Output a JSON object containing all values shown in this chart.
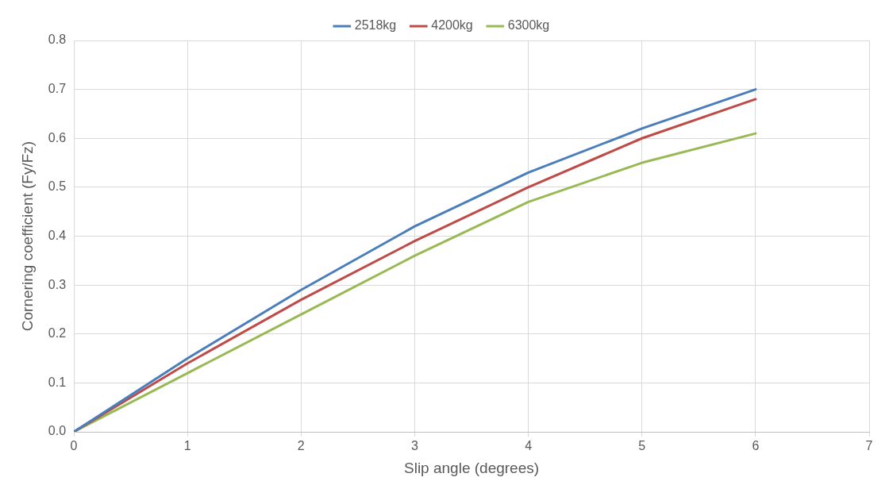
{
  "chart_data": {
    "type": "line",
    "xlabel": "Slip angle (degrees)",
    "ylabel": "Cornering coefficient (Fy/Fz)",
    "x": [
      0,
      1,
      2,
      3,
      4,
      5,
      6
    ],
    "series": [
      {
        "name": "2518kg",
        "color": "#4a7ebb",
        "values": [
          0,
          0.15,
          0.29,
          0.42,
          0.53,
          0.62,
          0.7
        ]
      },
      {
        "name": "4200kg",
        "color": "#be4b48",
        "values": [
          0,
          0.14,
          0.27,
          0.39,
          0.5,
          0.6,
          0.68
        ]
      },
      {
        "name": "6300kg",
        "color": "#98b954",
        "values": [
          0,
          0.12,
          0.24,
          0.36,
          0.47,
          0.55,
          0.61
        ]
      }
    ],
    "xlim": [
      0,
      7
    ],
    "xticks": [
      0,
      1,
      2,
      3,
      4,
      5,
      6,
      7
    ],
    "ylim": [
      0,
      0.8
    ],
    "yticks": [
      {
        "value": 0,
        "label": "0.0"
      },
      0.1,
      0.2,
      0.3,
      0.4,
      0.5,
      0.6,
      0.7,
      0.8
    ],
    "grid": true,
    "legend": "top",
    "marker": "none",
    "line_style": "solid"
  }
}
